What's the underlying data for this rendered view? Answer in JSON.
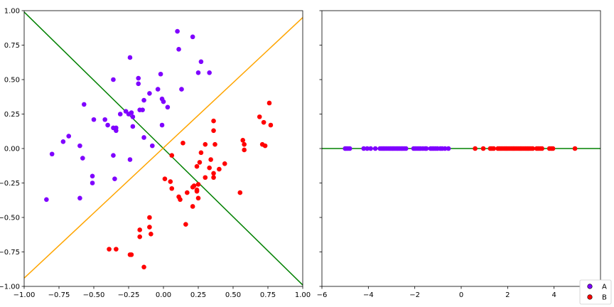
{
  "colors": {
    "A": "#7f00ff",
    "B": "#ff0000",
    "green_line": "#008000",
    "orange_line": "#ffa500",
    "axis_line": "#008000"
  },
  "chart_data": [
    {
      "type": "scatter",
      "title": "",
      "xlabel": "",
      "ylabel": "",
      "xlim": [
        -1.0,
        1.0
      ],
      "ylim": [
        -1.0,
        1.0
      ],
      "xticks": [
        "−1.00",
        "−0.75",
        "−0.50",
        "−0.25",
        "0.00",
        "0.25",
        "0.50",
        "0.75",
        "1.00"
      ],
      "yticks": [
        "1.00",
        "0.75",
        "0.50",
        "0.25",
        "0.00",
        "−0.25",
        "−0.50",
        "−0.75",
        "−1.00"
      ],
      "grid": false,
      "lines": [
        {
          "color": "green",
          "x": [
            -1.0,
            1.0
          ],
          "y": [
            0.99,
            -0.99
          ]
        },
        {
          "color": "orange",
          "x": [
            -1.0,
            1.0
          ],
          "y": [
            -0.94,
            0.95
          ]
        }
      ],
      "series": [
        {
          "color_key": "A",
          "points": [
            [
              0.1,
              0.85
            ],
            [
              0.21,
              0.81
            ],
            [
              0.11,
              0.72
            ],
            [
              -0.24,
              0.66
            ],
            [
              0.27,
              0.63
            ],
            [
              -0.36,
              0.5
            ],
            [
              -0.18,
              0.51
            ],
            [
              0.25,
              0.55
            ],
            [
              0.33,
              0.55
            ],
            [
              -0.02,
              0.54
            ],
            [
              -0.18,
              0.47
            ],
            [
              -0.1,
              0.4
            ],
            [
              -0.04,
              0.43
            ],
            [
              0.13,
              0.43
            ],
            [
              -0.57,
              0.32
            ],
            [
              -0.01,
              0.36
            ],
            [
              0.0,
              0.34
            ],
            [
              -0.14,
              0.35
            ],
            [
              0.03,
              0.3
            ],
            [
              -0.27,
              0.27
            ],
            [
              -0.23,
              0.26
            ],
            [
              -0.31,
              0.25
            ],
            [
              -0.25,
              0.25
            ],
            [
              -0.17,
              0.28
            ],
            [
              -0.15,
              0.28
            ],
            [
              -0.5,
              0.21
            ],
            [
              -0.42,
              0.21
            ],
            [
              -0.22,
              0.23
            ],
            [
              -0.4,
              0.17
            ],
            [
              -0.34,
              0.15
            ],
            [
              -0.36,
              0.15
            ],
            [
              -0.34,
              0.13
            ],
            [
              -0.22,
              0.16
            ],
            [
              -0.01,
              0.17
            ],
            [
              -0.68,
              0.09
            ],
            [
              -0.72,
              0.05
            ],
            [
              -0.14,
              0.08
            ],
            [
              -0.08,
              0.02
            ],
            [
              -0.6,
              0.02
            ],
            [
              -0.8,
              -0.04
            ],
            [
              -0.36,
              -0.05
            ],
            [
              -0.58,
              -0.07
            ],
            [
              -0.24,
              -0.08
            ],
            [
              -0.51,
              -0.2
            ],
            [
              -0.35,
              -0.22
            ],
            [
              -0.51,
              -0.25
            ],
            [
              -0.6,
              -0.36
            ],
            [
              -0.84,
              -0.37
            ]
          ]
        },
        {
          "color_key": "B",
          "points": [
            [
              0.76,
              0.33
            ],
            [
              0.69,
              0.23
            ],
            [
              0.36,
              0.2
            ],
            [
              0.72,
              0.19
            ],
            [
              0.77,
              0.17
            ],
            [
              0.36,
              0.13
            ],
            [
              0.57,
              0.06
            ],
            [
              0.58,
              0.03
            ],
            [
              0.14,
              0.04
            ],
            [
              0.3,
              0.03
            ],
            [
              0.37,
              0.03
            ],
            [
              0.71,
              0.03
            ],
            [
              0.73,
              0.02
            ],
            [
              0.58,
              -0.01
            ],
            [
              0.27,
              -0.03
            ],
            [
              0.06,
              -0.05
            ],
            [
              0.34,
              -0.08
            ],
            [
              0.26,
              -0.1
            ],
            [
              0.44,
              -0.11
            ],
            [
              0.24,
              -0.13
            ],
            [
              0.33,
              -0.14
            ],
            [
              0.4,
              -0.15
            ],
            [
              0.36,
              -0.18
            ],
            [
              0.3,
              -0.21
            ],
            [
              0.36,
              -0.21
            ],
            [
              0.01,
              -0.22
            ],
            [
              0.05,
              -0.24
            ],
            [
              0.25,
              -0.26
            ],
            [
              0.22,
              -0.27
            ],
            [
              0.21,
              -0.28
            ],
            [
              0.06,
              -0.29
            ],
            [
              0.24,
              -0.3
            ],
            [
              0.24,
              -0.31
            ],
            [
              0.17,
              -0.32
            ],
            [
              0.55,
              -0.32
            ],
            [
              0.11,
              -0.35
            ],
            [
              0.25,
              -0.36
            ],
            [
              0.12,
              -0.37
            ],
            [
              0.21,
              -0.42
            ],
            [
              -0.1,
              -0.5
            ],
            [
              0.16,
              -0.55
            ],
            [
              -0.1,
              -0.57
            ],
            [
              -0.17,
              -0.59
            ],
            [
              -0.09,
              -0.62
            ],
            [
              -0.17,
              -0.64
            ],
            [
              -0.39,
              -0.73
            ],
            [
              -0.34,
              -0.73
            ],
            [
              -0.23,
              -0.77
            ],
            [
              -0.24,
              -0.77
            ],
            [
              -0.14,
              -0.86
            ]
          ]
        }
      ]
    },
    {
      "type": "scatter",
      "title": "",
      "xlabel": "",
      "ylabel": "",
      "xlim": [
        -6,
        6
      ],
      "ylim": [
        -1.0,
        1.0
      ],
      "xticks": [
        "−6",
        "−4",
        "−2",
        "0",
        "2",
        "4"
      ],
      "grid": false,
      "lines": [
        {
          "color": "green",
          "x": [
            -6,
            6
          ],
          "y": [
            0,
            0
          ]
        }
      ],
      "series": [
        {
          "color_key": "A",
          "points": [
            [
              -5.0,
              0
            ],
            [
              -4.95,
              0
            ],
            [
              -4.88,
              0
            ],
            [
              -4.8,
              0
            ],
            [
              -4.2,
              0
            ],
            [
              -4.05,
              0
            ],
            [
              -3.9,
              0
            ],
            [
              -3.7,
              0
            ],
            [
              -3.5,
              0
            ],
            [
              -3.42,
              0
            ],
            [
              -3.35,
              0
            ],
            [
              -3.28,
              0
            ],
            [
              -3.2,
              0
            ],
            [
              -3.12,
              0
            ],
            [
              -3.05,
              0
            ],
            [
              -2.98,
              0
            ],
            [
              -2.92,
              0
            ],
            [
              -2.85,
              0
            ],
            [
              -2.78,
              0
            ],
            [
              -2.72,
              0
            ],
            [
              -2.65,
              0
            ],
            [
              -2.58,
              0
            ],
            [
              -2.52,
              0
            ],
            [
              -2.45,
              0
            ],
            [
              -2.38,
              0
            ],
            [
              -2.05,
              0
            ],
            [
              -1.98,
              0
            ],
            [
              -1.9,
              0
            ],
            [
              -1.82,
              0
            ],
            [
              -1.75,
              0
            ],
            [
              -1.65,
              0
            ],
            [
              -1.55,
              0
            ],
            [
              -1.5,
              0
            ],
            [
              -1.32,
              0
            ],
            [
              -1.25,
              0
            ],
            [
              -1.18,
              0
            ],
            [
              -1.1,
              0
            ],
            [
              -1.02,
              0
            ],
            [
              -0.9,
              0
            ],
            [
              -0.82,
              0
            ],
            [
              -0.7,
              0
            ],
            [
              -0.55,
              0
            ]
          ]
        },
        {
          "color_key": "B",
          "points": [
            [
              0.6,
              0
            ],
            [
              0.95,
              0
            ],
            [
              1.25,
              0
            ],
            [
              1.32,
              0
            ],
            [
              1.4,
              0
            ],
            [
              1.58,
              0
            ],
            [
              1.65,
              0
            ],
            [
              1.72,
              0
            ],
            [
              1.8,
              0
            ],
            [
              1.88,
              0
            ],
            [
              1.95,
              0
            ],
            [
              2.02,
              0
            ],
            [
              2.1,
              0
            ],
            [
              2.18,
              0
            ],
            [
              2.25,
              0
            ],
            [
              2.32,
              0
            ],
            [
              2.4,
              0
            ],
            [
              2.48,
              0
            ],
            [
              2.55,
              0
            ],
            [
              2.62,
              0
            ],
            [
              2.7,
              0
            ],
            [
              2.78,
              0
            ],
            [
              2.85,
              0
            ],
            [
              2.92,
              0
            ],
            [
              3.0,
              0
            ],
            [
              3.08,
              0
            ],
            [
              3.25,
              0
            ],
            [
              3.32,
              0
            ],
            [
              3.4,
              0
            ],
            [
              3.48,
              0
            ],
            [
              3.8,
              0
            ],
            [
              3.88,
              0
            ],
            [
              3.95,
              0
            ],
            [
              4.9,
              0
            ]
          ]
        }
      ],
      "legend": {
        "placement": "lower-right",
        "entries": [
          {
            "label": "A",
            "color_key": "A"
          },
          {
            "label": "B",
            "color_key": "B"
          }
        ]
      }
    }
  ]
}
